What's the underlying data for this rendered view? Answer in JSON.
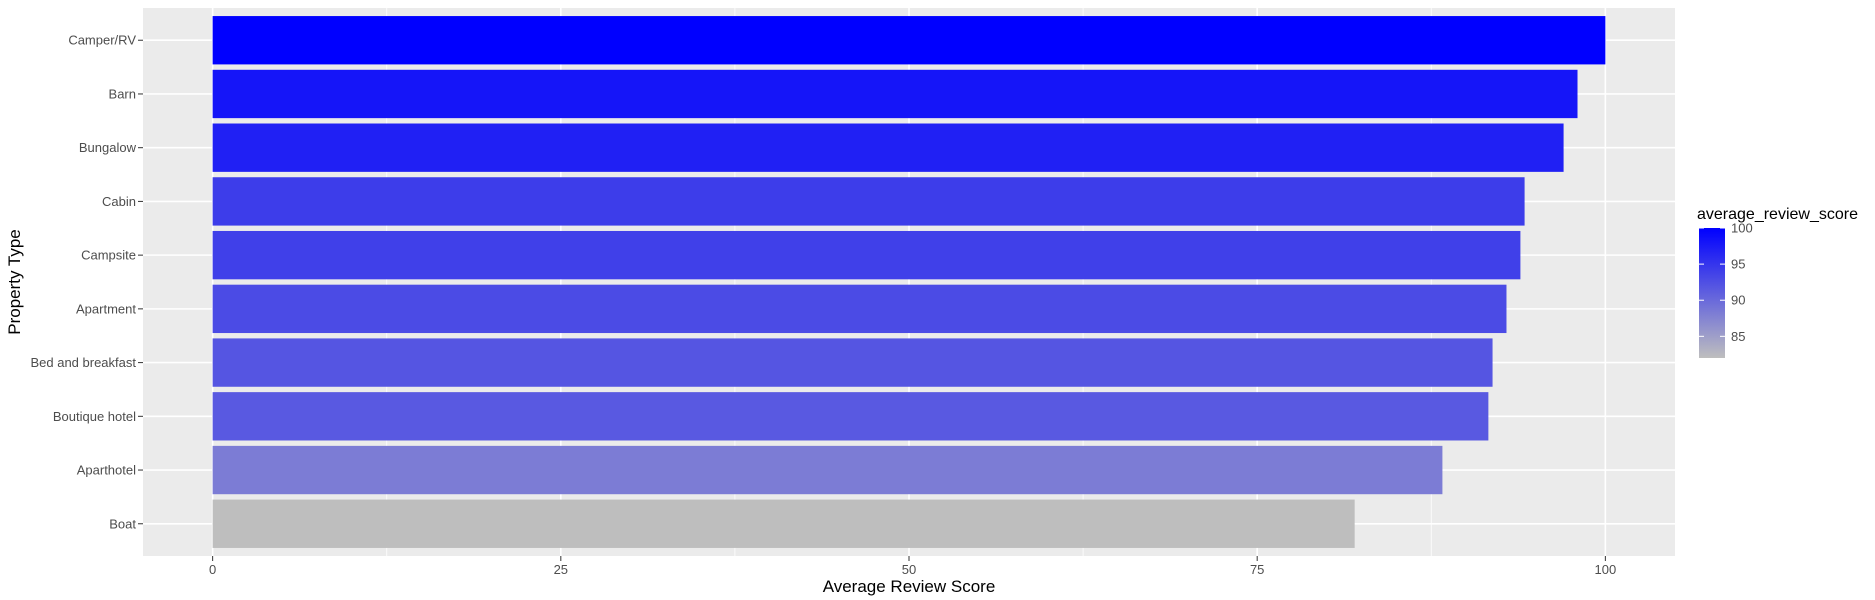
{
  "chart_data": {
    "type": "bar",
    "orientation": "horizontal",
    "xlabel": "Average Review Score",
    "ylabel": "Property Type",
    "xlim": [
      -5,
      105
    ],
    "x_ticks": [
      0,
      25,
      50,
      75,
      100
    ],
    "categories": [
      "Camper/RV",
      "Barn",
      "Bungalow",
      "Cabin",
      "Campsite",
      "Apartment",
      "Bed and breakfast",
      "Boutique hotel",
      "Aparthotel",
      "Boat"
    ],
    "values": [
      100,
      98,
      97,
      94.2,
      93.9,
      92.9,
      91.9,
      91.6,
      88.3,
      82
    ],
    "grid": true,
    "background": "#ebebeb",
    "legend": {
      "title": "average_review_score",
      "position": "right",
      "ticks": [
        85,
        90,
        95,
        100
      ],
      "range": [
        82,
        100
      ],
      "color_low": "#bebebe",
      "color_high": "#0000ff"
    }
  }
}
